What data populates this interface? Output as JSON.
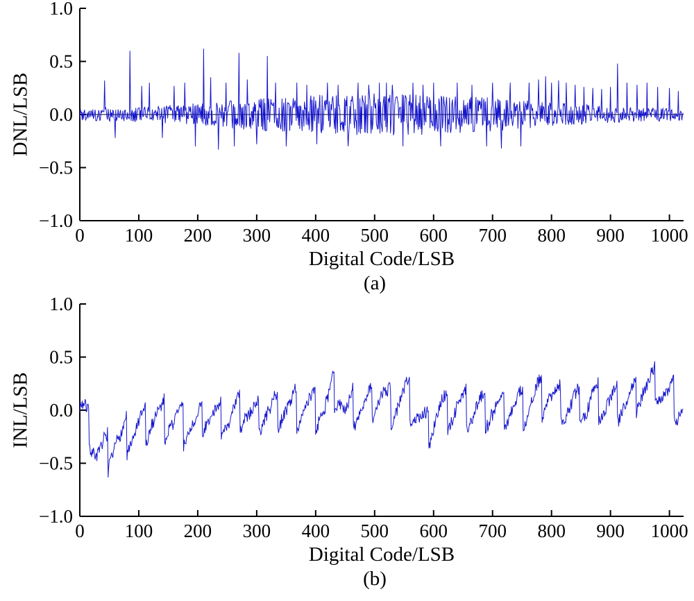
{
  "figure": {
    "background": "#ffffff",
    "axis_color": "#000000",
    "line_color": "#1414cc"
  },
  "chart_data": [
    {
      "id": "dnl",
      "type": "line",
      "caption": "(a)",
      "xlabel": "Digital Code/LSB",
      "ylabel": "DNL/LSB",
      "xlim": [
        0,
        1024
      ],
      "ylim": [
        -1,
        1
      ],
      "xticks": [
        0,
        100,
        200,
        300,
        400,
        500,
        600,
        700,
        800,
        900,
        1000
      ],
      "xtick_labels": [
        "0",
        "100",
        "200",
        "300",
        "400",
        "500",
        "600",
        "700",
        "800",
        "900",
        "1000"
      ],
      "yticks": [
        -1,
        -0.5,
        0,
        0.5,
        1
      ],
      "ytick_labels": [
        "−1.0",
        "−0.5",
        "0.0",
        "0.5",
        "1.0"
      ],
      "grid": false,
      "legend": null,
      "zero_line": true,
      "line_color": "#1414cc",
      "n_codes": 1024,
      "synthesis": {
        "kind": "dnl_noise",
        "seed": 42,
        "base_amplitude": 0.06,
        "mid_amplitude": 0.14,
        "spikes": [
          [
            42,
            0.32
          ],
          [
            60,
            -0.22
          ],
          [
            85,
            0.6
          ],
          [
            105,
            0.27
          ],
          [
            118,
            0.3
          ],
          [
            140,
            -0.22
          ],
          [
            160,
            0.27
          ],
          [
            178,
            0.3
          ],
          [
            196,
            -0.3
          ],
          [
            210,
            0.62
          ],
          [
            222,
            0.35
          ],
          [
            235,
            -0.33
          ],
          [
            248,
            0.3
          ],
          [
            262,
            -0.3
          ],
          [
            270,
            0.58
          ],
          [
            284,
            0.33
          ],
          [
            300,
            -0.28
          ],
          [
            318,
            0.55
          ],
          [
            332,
            0.3
          ],
          [
            350,
            -0.3
          ],
          [
            368,
            0.3
          ],
          [
            385,
            0.28
          ],
          [
            402,
            -0.28
          ],
          [
            420,
            0.3
          ],
          [
            438,
            0.28
          ],
          [
            455,
            -0.3
          ],
          [
            472,
            0.3
          ],
          [
            490,
            0.28
          ],
          [
            508,
            0.3
          ],
          [
            520,
            0.3
          ],
          [
            530,
            0.28
          ],
          [
            548,
            -0.3
          ],
          [
            565,
            0.3
          ],
          [
            582,
            0.28
          ],
          [
            600,
            0.3
          ],
          [
            612,
            -0.3
          ],
          [
            640,
            0.3
          ],
          [
            665,
            0.28
          ],
          [
            690,
            -0.3
          ],
          [
            700,
            0.3
          ],
          [
            715,
            -0.32
          ],
          [
            730,
            0.3
          ],
          [
            748,
            -0.3
          ],
          [
            762,
            0.3
          ],
          [
            778,
            0.33
          ],
          [
            790,
            0.36
          ],
          [
            800,
            0.3
          ],
          [
            812,
            0.32
          ],
          [
            825,
            0.3
          ],
          [
            840,
            0.28
          ],
          [
            855,
            0.26
          ],
          [
            870,
            0.25
          ],
          [
            885,
            0.24
          ],
          [
            900,
            0.26
          ],
          [
            912,
            0.48
          ],
          [
            928,
            0.3
          ],
          [
            945,
            0.28
          ],
          [
            962,
            0.3
          ],
          [
            980,
            0.26
          ],
          [
            1000,
            0.25
          ],
          [
            1015,
            0.22
          ]
        ]
      }
    },
    {
      "id": "inl",
      "type": "line",
      "caption": "(b)",
      "xlabel": "Digital Code/LSB",
      "ylabel": "INL/LSB",
      "xlim": [
        0,
        1024
      ],
      "ylim": [
        -1,
        1
      ],
      "xticks": [
        0,
        100,
        200,
        300,
        400,
        500,
        600,
        700,
        800,
        900,
        1000
      ],
      "xtick_labels": [
        "0",
        "100",
        "200",
        "300",
        "400",
        "500",
        "600",
        "700",
        "800",
        "900",
        "1000"
      ],
      "yticks": [
        -1,
        -0.5,
        0,
        0.5,
        1
      ],
      "ytick_labels": [
        "−1.0",
        "−0.5",
        "0.0",
        "0.5",
        "1.0"
      ],
      "grid": false,
      "legend": null,
      "zero_line": false,
      "line_color": "#1414cc",
      "n_codes": 1024,
      "synthesis": {
        "kind": "inl_sawtooth",
        "seed": 7,
        "saw_period": 32,
        "saw_phase_offset": 16,
        "saw_amplitude": 0.2,
        "noise_amplitude": 0.06,
        "walk_step": 0.02,
        "walk_clamp": 0.1,
        "trend_keypoints": [
          [
            0,
            0.05
          ],
          [
            15,
            -0.1
          ],
          [
            30,
            -0.3
          ],
          [
            45,
            -0.38
          ],
          [
            60,
            -0.28
          ],
          [
            80,
            -0.2
          ],
          [
            100,
            -0.15
          ],
          [
            130,
            -0.1
          ],
          [
            160,
            -0.12
          ],
          [
            200,
            -0.22
          ],
          [
            215,
            -0.08
          ],
          [
            250,
            -0.06
          ],
          [
            300,
            -0.05
          ],
          [
            350,
            0.0
          ],
          [
            400,
            0.02
          ],
          [
            435,
            0.25
          ],
          [
            450,
            0.0
          ],
          [
            500,
            0.05
          ],
          [
            550,
            0.08
          ],
          [
            590,
            -0.12
          ],
          [
            610,
            0.05
          ],
          [
            650,
            0.08
          ],
          [
            700,
            0.1
          ],
          [
            750,
            0.1
          ],
          [
            800,
            0.18
          ],
          [
            850,
            0.1
          ],
          [
            900,
            0.15
          ],
          [
            935,
            0.2
          ],
          [
            960,
            0.3
          ],
          [
            975,
            0.33
          ],
          [
            990,
            0.25
          ],
          [
            1010,
            0.12
          ],
          [
            1023,
            0.0
          ]
        ]
      }
    }
  ]
}
